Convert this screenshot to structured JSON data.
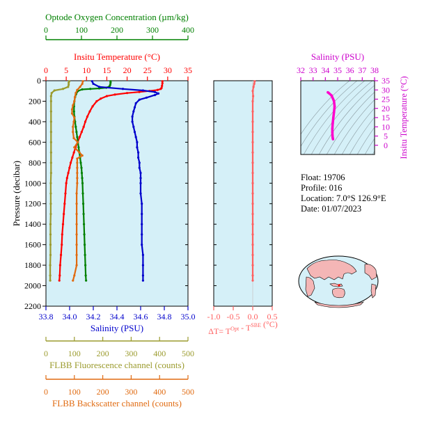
{
  "chart_data": [
    {
      "type": "line",
      "panel": "main-profile",
      "y_axis": {
        "label": "Pressure (decibar)",
        "ylim": [
          2200,
          0
        ],
        "ticks": [
          0,
          200,
          400,
          600,
          800,
          1000,
          1200,
          1400,
          1600,
          1800,
          2000,
          2200
        ]
      },
      "axes": {
        "oxygen": {
          "label": "Optode Oxygen Concentration (µm/kg)",
          "xlim": [
            0,
            400
          ],
          "ticks": [
            0,
            100,
            200,
            300,
            400
          ],
          "color": "#008000"
        },
        "temperature": {
          "label": "Insitu Temperature (°C)",
          "xlim": [
            0,
            35
          ],
          "ticks": [
            0,
            5,
            10,
            15,
            20,
            25,
            30,
            35
          ],
          "color": "#ff0000"
        },
        "salinity": {
          "label": "Salinity (PSU)",
          "xlim": [
            33.8,
            35.0
          ],
          "ticks": [
            "33.8",
            "34.0",
            "34.2",
            "34.4",
            "34.6",
            "34.8",
            "35.0"
          ],
          "color": "#0000cc"
        },
        "fluorescence": {
          "label": "FLBB Fluorescence channel (counts)",
          "xlim": [
            0,
            500
          ],
          "ticks": [
            0,
            100,
            200,
            300,
            400,
            500
          ],
          "color": "#9b9b2e"
        },
        "backscatter": {
          "label": "FLBB Backscatter channel (counts)",
          "xlim": [
            0,
            500
          ],
          "ticks": [
            0,
            100,
            200,
            300,
            400,
            500
          ],
          "color": "#e06a10"
        }
      },
      "series": [
        {
          "name": "Insitu Temperature (°C)",
          "axis": "temperature",
          "color": "#ff0000",
          "points": [
            [
              28.7,
              5
            ],
            [
              28.7,
              25
            ],
            [
              28.6,
              50
            ],
            [
              28.5,
              70
            ],
            [
              28.3,
              80
            ],
            [
              27.5,
              90
            ],
            [
              25.5,
              100
            ],
            [
              23,
              110
            ],
            [
              20,
              120
            ],
            [
              17,
              135
            ],
            [
              15,
              150
            ],
            [
              13.5,
              175
            ],
            [
              12.5,
              200
            ],
            [
              11.5,
              250
            ],
            [
              10.8,
              300
            ],
            [
              10.2,
              350
            ],
            [
              9.7,
              400
            ],
            [
              9.3,
              450
            ],
            [
              8.8,
              500
            ],
            [
              8.3,
              550
            ],
            [
              7.8,
              600
            ],
            [
              7.3,
              650
            ],
            [
              6.9,
              700
            ],
            [
              6.5,
              750
            ],
            [
              6.1,
              800
            ],
            [
              5.8,
              850
            ],
            [
              5.5,
              900
            ],
            [
              5.2,
              950
            ],
            [
              5.0,
              1000
            ],
            [
              4.8,
              1100
            ],
            [
              4.6,
              1200
            ],
            [
              4.4,
              1300
            ],
            [
              4.2,
              1400
            ],
            [
              4.0,
              1500
            ],
            [
              3.9,
              1600
            ],
            [
              3.7,
              1700
            ],
            [
              3.5,
              1800
            ],
            [
              3.4,
              1900
            ],
            [
              3.3,
              1950
            ]
          ]
        },
        {
          "name": "Optode Oxygen Concentration (µm/kg)",
          "axis": "oxygen",
          "color": "#008000",
          "points": [
            [
              182,
              5
            ],
            [
              182,
              20
            ],
            [
              181,
              40
            ],
            [
              179,
              55
            ],
            [
              170,
              68
            ],
            [
              150,
              75
            ],
            [
              125,
              80
            ],
            [
              102,
              85
            ],
            [
              90,
              100
            ],
            [
              85,
              130
            ],
            [
              82,
              160
            ],
            [
              80,
              200
            ],
            [
              79,
              250
            ],
            [
              79,
              300
            ],
            [
              80,
              350
            ],
            [
              82,
              400
            ],
            [
              84,
              450
            ],
            [
              86,
              500
            ],
            [
              88,
              550
            ],
            [
              90,
              600
            ],
            [
              92,
              650
            ],
            [
              94,
              700
            ],
            [
              96,
              750
            ],
            [
              98,
              800
            ],
            [
              100,
              850
            ],
            [
              101,
              900
            ],
            [
              102,
              950
            ],
            [
              103,
              1000
            ],
            [
              104,
              1100
            ],
            [
              105,
              1200
            ],
            [
              106,
              1300
            ],
            [
              107,
              1400
            ],
            [
              108,
              1500
            ],
            [
              109,
              1600
            ],
            [
              110,
              1700
            ],
            [
              111,
              1800
            ],
            [
              112,
              1900
            ],
            [
              113,
              1950
            ]
          ]
        },
        {
          "name": "Salinity (PSU)",
          "axis": "salinity",
          "color": "#0000cc",
          "points": [
            [
              34.19,
              5
            ],
            [
              34.2,
              30
            ],
            [
              34.25,
              60
            ],
            [
              34.45,
              80
            ],
            [
              34.62,
              95
            ],
            [
              34.72,
              110
            ],
            [
              34.75,
              125
            ],
            [
              34.72,
              140
            ],
            [
              34.65,
              165
            ],
            [
              34.59,
              185
            ],
            [
              34.56,
              220
            ],
            [
              34.55,
              260
            ],
            [
              34.54,
              300
            ],
            [
              34.53,
              350
            ],
            [
              34.53,
              400
            ],
            [
              34.54,
              450
            ],
            [
              34.55,
              500
            ],
            [
              34.56,
              550
            ],
            [
              34.57,
              600
            ],
            [
              34.57,
              650
            ],
            [
              34.58,
              700
            ],
            [
              34.58,
              750
            ],
            [
              34.59,
              800
            ],
            [
              34.59,
              850
            ],
            [
              34.6,
              900
            ],
            [
              34.6,
              950
            ],
            [
              34.6,
              1000
            ],
            [
              34.6,
              1100
            ],
            [
              34.61,
              1200
            ],
            [
              34.61,
              1300
            ],
            [
              34.61,
              1400
            ],
            [
              34.61,
              1500
            ],
            [
              34.61,
              1600
            ],
            [
              34.62,
              1700
            ],
            [
              34.62,
              1800
            ],
            [
              34.62,
              1900
            ],
            [
              34.62,
              1950
            ]
          ]
        },
        {
          "name": "FLBB Fluorescence channel (counts)",
          "axis": "fluorescence",
          "color": "#9b9b2e",
          "points": [
            [
              82,
              5
            ],
            [
              80,
              20
            ],
            [
              80,
              40
            ],
            [
              78,
              60
            ],
            [
              60,
              80
            ],
            [
              30,
              95
            ],
            [
              20,
              120
            ],
            [
              18,
              150
            ],
            [
              18,
              200
            ],
            [
              18,
              300
            ],
            [
              18,
              400
            ],
            [
              18,
              500
            ],
            [
              18,
              600
            ],
            [
              18,
              700
            ],
            [
              18,
              800
            ],
            [
              18,
              900
            ],
            [
              17,
              1000
            ],
            [
              17,
              1100
            ],
            [
              17,
              1200
            ],
            [
              17,
              1300
            ],
            [
              16,
              1400
            ],
            [
              16,
              1500
            ],
            [
              16,
              1600
            ],
            [
              16,
              1700
            ],
            [
              15,
              1800
            ],
            [
              15,
              1900
            ],
            [
              15,
              1950
            ]
          ]
        },
        {
          "name": "FLBB Backscatter channel (counts)",
          "axis": "backscatter",
          "color": "#e06a10",
          "points": [
            [
              130,
              5
            ],
            [
              128,
              30
            ],
            [
              120,
              60
            ],
            [
              110,
              90
            ],
            [
              105,
              120
            ],
            [
              102,
              160
            ],
            [
              100,
              200
            ],
            [
              95,
              240
            ],
            [
              92,
              280
            ],
            [
              92,
              320
            ],
            [
              100,
              360
            ],
            [
              98,
              400
            ],
            [
              95,
              450
            ],
            [
              95,
              500
            ],
            [
              98,
              560
            ],
            [
              112,
              600
            ],
            [
              100,
              650
            ],
            [
              118,
              700
            ],
            [
              128,
              730
            ],
            [
              110,
              760
            ],
            [
              110,
              800
            ],
            [
              110,
              850
            ],
            [
              110,
              900
            ],
            [
              110,
              950
            ],
            [
              110,
              1000
            ],
            [
              108,
              1100
            ],
            [
              108,
              1200
            ],
            [
              108,
              1300
            ],
            [
              108,
              1400
            ],
            [
              108,
              1500
            ],
            [
              108,
              1600
            ],
            [
              108,
              1700
            ],
            [
              108,
              1800
            ],
            [
              100,
              1900
            ],
            [
              95,
              1950
            ]
          ]
        }
      ]
    },
    {
      "type": "line",
      "panel": "delta-t",
      "xlabel": "ΔT= T",
      "xlabel_sup1": "Opt",
      "xlabel_mid": " - T",
      "xlabel_sup2": "SBE",
      "xlabel_unit": " (°C)",
      "xlim": [
        -1.0,
        0.5
      ],
      "ticks": [
        "-1.0",
        "-0.5",
        "0.0",
        "0.5"
      ],
      "ylim": [
        2200,
        0
      ],
      "color": "#ff6060",
      "points": [
        [
          0.05,
          5
        ],
        [
          0.04,
          30
        ],
        [
          0.02,
          60
        ],
        [
          0.0,
          100
        ],
        [
          0.01,
          150
        ],
        [
          0.0,
          200
        ],
        [
          0.0,
          300
        ],
        [
          0.0,
          400
        ],
        [
          0.0,
          500
        ],
        [
          0.0,
          600
        ],
        [
          0.0,
          700
        ],
        [
          0.0,
          800
        ],
        [
          0.0,
          900
        ],
        [
          0.0,
          1000
        ],
        [
          0.0,
          1100
        ],
        [
          0.0,
          1200
        ],
        [
          0.0,
          1300
        ],
        [
          0.0,
          1400
        ],
        [
          0.0,
          1500
        ],
        [
          0.0,
          1600
        ],
        [
          0.0,
          1700
        ],
        [
          0.0,
          1800
        ],
        [
          0.0,
          1900
        ],
        [
          0.0,
          1950
        ]
      ]
    },
    {
      "type": "scatter",
      "panel": "ts-diagram",
      "xlabel": "Salinity (PSU)",
      "ylabel": "Insitu Temperature (°C)",
      "xlim": [
        32,
        38
      ],
      "ylim": [
        -5,
        35
      ],
      "xticks": [
        32,
        33,
        34,
        35,
        36,
        37,
        38
      ],
      "yticks": [
        0,
        5,
        10,
        15,
        20,
        25,
        30,
        35
      ],
      "color": "#ff00cc",
      "points": [
        [
          34.2,
          28.7
        ],
        [
          34.3,
          28.2
        ],
        [
          34.5,
          27
        ],
        [
          34.7,
          24
        ],
        [
          34.75,
          21
        ],
        [
          34.7,
          18
        ],
        [
          34.65,
          15
        ],
        [
          34.6,
          12
        ],
        [
          34.57,
          9
        ],
        [
          34.57,
          7
        ],
        [
          34.58,
          5
        ],
        [
          34.6,
          4
        ],
        [
          34.62,
          3.3
        ]
      ]
    }
  ],
  "float_info": {
    "float": "Float:  19706",
    "profile": "Profile:  016",
    "location": "Location:  7.0°S  126.9°E",
    "date": "Date:  01/07/2023"
  },
  "colors": {
    "plot_background": "#d5f0f8",
    "temperature": "#ff0000",
    "oxygen": "#008000",
    "salinity": "#0000cc",
    "fluorescence": "#9b9b2e",
    "backscatter": "#e06a10",
    "delta_t": "#ff6060",
    "ts_points": "#ff00cc",
    "ts_axis": "#cc00cc"
  }
}
